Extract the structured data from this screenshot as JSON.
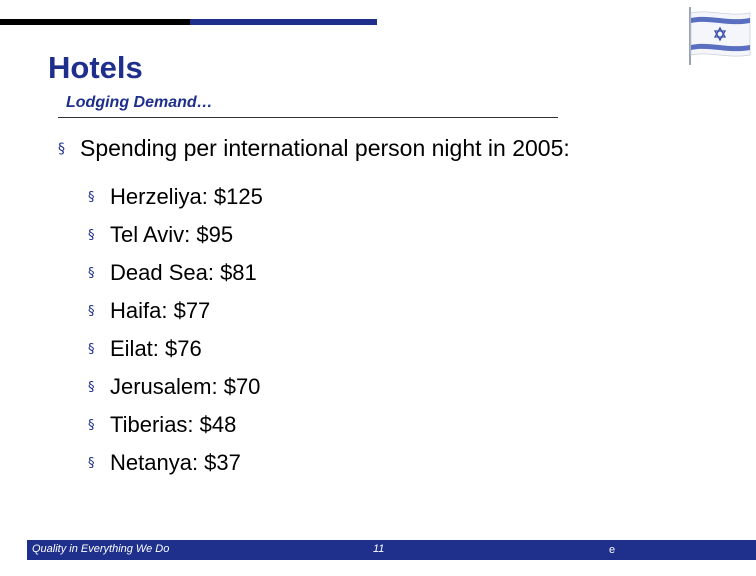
{
  "slide": {
    "title": "Hotels",
    "subtitle": "Lodging Demand…",
    "main_point": "Spending per international person night in 2005:",
    "items": [
      {
        "label": "Herzeliya: $125"
      },
      {
        "label": "Tel Aviv: $95"
      },
      {
        "label": "Dead Sea: $81"
      },
      {
        "label": "Haifa: $77"
      },
      {
        "label": "Eilat: $76"
      },
      {
        "label": "Jerusalem: $70"
      },
      {
        "label": "Tiberias: $48"
      },
      {
        "label": "Netanya: $37"
      }
    ]
  },
  "footer": {
    "tagline": "Quality in Everything We Do",
    "page_number": "11",
    "mark": "e"
  },
  "colors": {
    "accent": "#1e2f8c",
    "bar_dark": "#000000"
  },
  "icons": {
    "bullet": "square-bullet-icon",
    "flag": "israel-flag-icon"
  }
}
